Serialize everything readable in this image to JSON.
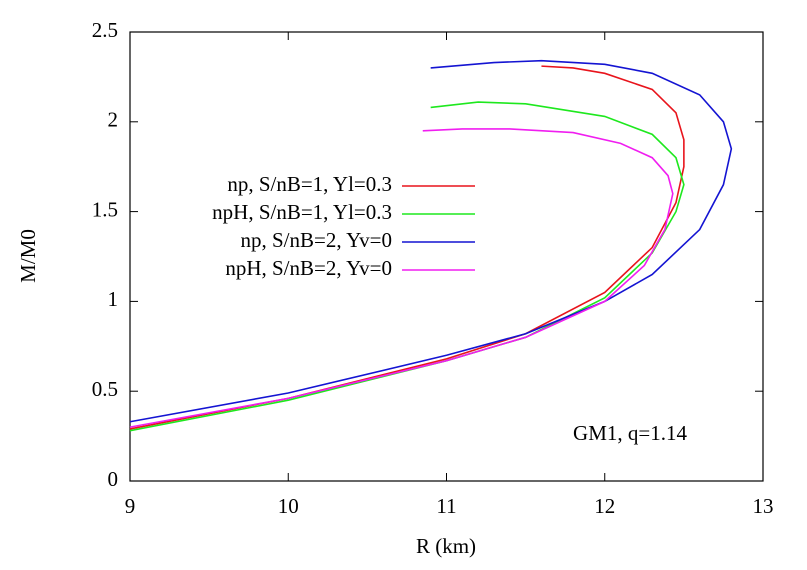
{
  "chart_data": {
    "type": "line",
    "xlabel": "R (km)",
    "ylabel": "M/M0",
    "annotation": "GM1, q=1.14",
    "xlim": [
      9,
      13
    ],
    "ylim": [
      0,
      2.5
    ],
    "xticks": [
      9,
      10,
      11,
      12,
      13
    ],
    "yticks": [
      0,
      0.5,
      1,
      1.5,
      2,
      2.5
    ],
    "legend": "center-left",
    "series": [
      {
        "name": "np, S/nB=1, Yl=0.3",
        "color": "#e8141c",
        "x": [
          9,
          10,
          11,
          11.5,
          12,
          12.3,
          12.45,
          12.5,
          12.5,
          12.45,
          12.3,
          12.0,
          11.8,
          11.6
        ],
        "values": [
          0.29,
          0.46,
          0.68,
          0.82,
          1.05,
          1.3,
          1.55,
          1.75,
          1.9,
          2.05,
          2.18,
          2.27,
          2.3,
          2.31
        ]
      },
      {
        "name": "npH, S/nB=1, Yl=0.3",
        "color": "#1ee81e",
        "x": [
          9,
          10,
          11,
          11.5,
          12,
          12.3,
          12.45,
          12.5,
          12.45,
          12.3,
          12.0,
          11.5,
          11.2,
          10.9
        ],
        "values": [
          0.28,
          0.45,
          0.67,
          0.8,
          1.02,
          1.27,
          1.5,
          1.65,
          1.8,
          1.93,
          2.03,
          2.1,
          2.11,
          2.08
        ]
      },
      {
        "name": "np, S/nB=2, Yv=0",
        "color": "#1414d2",
        "x": [
          9,
          10,
          11,
          11.5,
          12,
          12.3,
          12.6,
          12.75,
          12.8,
          12.75,
          12.6,
          12.3,
          12.0,
          11.6,
          11.3,
          10.9
        ],
        "values": [
          0.33,
          0.49,
          0.7,
          0.82,
          1.0,
          1.15,
          1.4,
          1.65,
          1.85,
          2.0,
          2.15,
          2.27,
          2.32,
          2.34,
          2.33,
          2.3
        ]
      },
      {
        "name": "npH, S/nB=2, Yv=0",
        "color": "#f01ef0",
        "x": [
          9,
          10,
          11,
          11.5,
          12,
          12.25,
          12.38,
          12.43,
          12.4,
          12.3,
          12.1,
          11.8,
          11.4,
          11.1,
          10.85
        ],
        "values": [
          0.3,
          0.46,
          0.67,
          0.8,
          1.0,
          1.2,
          1.4,
          1.6,
          1.7,
          1.8,
          1.88,
          1.94,
          1.96,
          1.96,
          1.95
        ]
      }
    ]
  }
}
